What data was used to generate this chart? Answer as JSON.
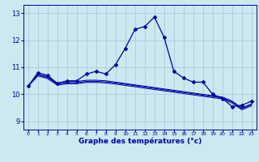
{
  "xlabel": "Graphe des températures (°c)",
  "background_color": "#cce8f0",
  "grid_color": "#aaccd8",
  "line_color": "#0000aa",
  "x_ticks": [
    0,
    1,
    2,
    3,
    4,
    5,
    6,
    7,
    8,
    9,
    10,
    11,
    12,
    13,
    14,
    15,
    16,
    17,
    18,
    19,
    20,
    21,
    22,
    23
  ],
  "ylim": [
    8.7,
    13.3
  ],
  "yticks": [
    9,
    10,
    11,
    12,
    13
  ],
  "line1_y": [
    10.3,
    10.8,
    10.7,
    10.4,
    10.5,
    10.5,
    10.75,
    10.85,
    10.75,
    11.1,
    11.7,
    12.4,
    12.5,
    12.85,
    12.1,
    10.85,
    10.6,
    10.45,
    10.45,
    10.0,
    9.85,
    9.55,
    9.6,
    9.75
  ],
  "line2_y": [
    10.3,
    10.75,
    10.65,
    10.42,
    10.47,
    10.47,
    10.52,
    10.52,
    10.5,
    10.45,
    10.4,
    10.35,
    10.3,
    10.25,
    10.2,
    10.15,
    10.1,
    10.05,
    10.0,
    9.95,
    9.9,
    9.75,
    9.5,
    9.65
  ],
  "line3_y": [
    10.3,
    10.72,
    10.62,
    10.38,
    10.43,
    10.43,
    10.48,
    10.48,
    10.46,
    10.42,
    10.37,
    10.32,
    10.27,
    10.22,
    10.17,
    10.12,
    10.07,
    10.02,
    9.97,
    9.92,
    9.87,
    9.72,
    9.47,
    9.62
  ],
  "line4_y": [
    10.3,
    10.68,
    10.58,
    10.34,
    10.39,
    10.39,
    10.44,
    10.44,
    10.42,
    10.38,
    10.33,
    10.28,
    10.23,
    10.18,
    10.13,
    10.08,
    10.03,
    9.98,
    9.93,
    9.88,
    9.83,
    9.68,
    9.43,
    9.58
  ]
}
